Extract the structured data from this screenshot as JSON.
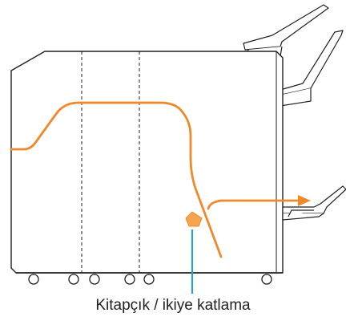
{
  "callout": {
    "label": "Kitapçık / ikiye katlama"
  },
  "colors": {
    "outline": "#231f20",
    "paper_path": "#f0892a",
    "callout": "#2a9fc9",
    "background": "#ffffff"
  },
  "icons": {
    "output_marker": "orange-pentagon-marker",
    "casters": "caster-wheel-icon"
  }
}
